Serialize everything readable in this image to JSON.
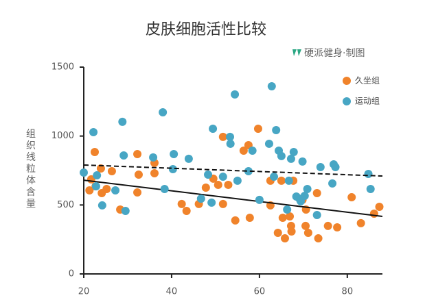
{
  "chart_data": {
    "type": "scatter",
    "title": "皮肤细胞活性比较",
    "credit": "硬派健身·制图",
    "y_label": "组织线粒体含量",
    "xlim": [
      20,
      88
    ],
    "xticks": [
      20,
      40,
      60,
      80
    ],
    "ylim": [
      0,
      1500
    ],
    "yticks": [
      0,
      500,
      1000,
      1500
    ],
    "legend": "top-right",
    "series": [
      {
        "name": "久坐组",
        "color": "#f0832b",
        "trend": [
          680,
          417
        ],
        "trend_style": "solid",
        "x": [
          21.3,
          21.7,
          22.5,
          22.7,
          23.9,
          24.1,
          25.2,
          26.4,
          28.3,
          32.2,
          32.5,
          32.2,
          36.1,
          36.1,
          42.3,
          43.4,
          46.2,
          47.8,
          49.5,
          50.6,
          51.7,
          51.7,
          52.9,
          54.5,
          56.4,
          57.5,
          57.8,
          59.7,
          62.5,
          62.5,
          64.2,
          65.0,
          65.3,
          65.8,
          66.9,
          67.2,
          67.3,
          67.7,
          69.8,
          70.5,
          70.6,
          71.1,
          73.1,
          73.4,
          75.6,
          77.7,
          81.0,
          83.1,
          86.1,
          87.3
        ],
        "values": [
          606,
          686,
          884,
          636,
          765,
          586,
          616,
          745,
          467,
          869,
          720,
          591,
          805,
          730,
          507,
          457,
          507,
          626,
          691,
          646,
          507,
          994,
          646,
          388,
          894,
          934,
          407,
          1053,
          497,
          676,
          298,
          676,
          407,
          258,
          417,
          348,
          308,
          676,
          537,
          348,
          467,
          298,
          586,
          258,
          348,
          338,
          556,
          368,
          437,
          487
        ]
      },
      {
        "name": "运动组",
        "color": "#47a6c4",
        "trend": [
          790,
          710
        ],
        "trend_style": "dashed",
        "x": [
          20.0,
          22.2,
          22.8,
          23.0,
          24.2,
          27.2,
          28.8,
          29.1,
          29.5,
          35.8,
          38.0,
          38.4,
          40.3,
          40.5,
          43.9,
          46.7,
          48.3,
          49.1,
          49.4,
          51.7,
          53.3,
          54.4,
          53.4,
          55.0,
          57.5,
          58.4,
          60.0,
          62.2,
          62.8,
          63.3,
          63.8,
          64.4,
          65.0,
          66.7,
          66.3,
          67.2,
          67.8,
          68.4,
          69.1,
          69.4,
          69.8,
          70.3,
          70.9,
          73.1,
          73.9,
          76.6,
          76.9,
          77.3,
          84.8,
          85.3
        ],
        "values": [
          735,
          1028,
          636,
          715,
          497,
          606,
          1103,
          859,
          457,
          845,
          1172,
          616,
          760,
          869,
          835,
          546,
          720,
          517,
          1053,
          705,
          994,
          1302,
          944,
          676,
          745,
          894,
          537,
          944,
          1361,
          705,
          1043,
          894,
          855,
          676,
          467,
          835,
          884,
          561,
          546,
          527,
          815,
          566,
          616,
          427,
          775,
          656,
          795,
          775,
          725,
          616
        ]
      }
    ]
  }
}
